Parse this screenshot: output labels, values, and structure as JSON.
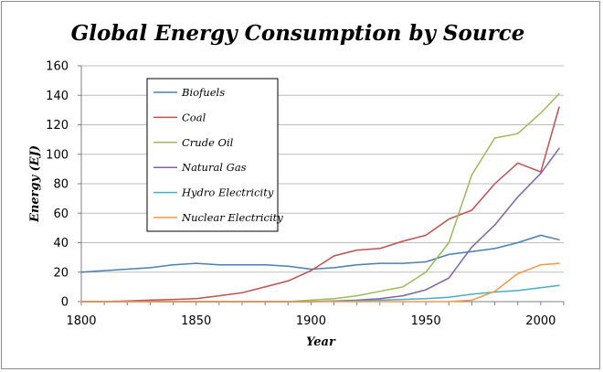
{
  "chart_data": {
    "type": "line",
    "title": "Global Energy Consumption by Source",
    "xlabel": "Year",
    "ylabel": "Energy (EJ)",
    "xlim": [
      1800,
      2010
    ],
    "ylim": [
      0,
      160
    ],
    "x_ticks": [
      1800,
      1850,
      1900,
      1950,
      2000
    ],
    "y_ticks": [
      0,
      20,
      40,
      60,
      80,
      100,
      120,
      140,
      160
    ],
    "grid": true,
    "legend_position": "top-left",
    "series": [
      {
        "name": "Biofuels",
        "color": "#4a7fb5",
        "x": [
          1800,
          1810,
          1820,
          1830,
          1840,
          1850,
          1860,
          1870,
          1880,
          1890,
          1900,
          1910,
          1920,
          1930,
          1940,
          1950,
          1960,
          1970,
          1980,
          1990,
          2000,
          2008
        ],
        "y": [
          20,
          21,
          22,
          23,
          25,
          26,
          25,
          25,
          25,
          24,
          22,
          23,
          25,
          26,
          26,
          27,
          32,
          34,
          36,
          40,
          45,
          42
        ]
      },
      {
        "name": "Coal",
        "color": "#c0504d",
        "x": [
          1800,
          1810,
          1820,
          1830,
          1840,
          1850,
          1860,
          1870,
          1880,
          1890,
          1900,
          1910,
          1920,
          1930,
          1940,
          1950,
          1960,
          1970,
          1980,
          1990,
          2000,
          2008
        ],
        "y": [
          0,
          0,
          0.5,
          1,
          1.5,
          2,
          4,
          6,
          10,
          14,
          21,
          31,
          35,
          36,
          41,
          45,
          56,
          62,
          80,
          94,
          88,
          132
        ]
      },
      {
        "name": "Crude Oil",
        "color": "#9bbb59",
        "x": [
          1800,
          1850,
          1890,
          1900,
          1910,
          1920,
          1930,
          1940,
          1950,
          1960,
          1970,
          1980,
          1990,
          2000,
          2008
        ],
        "y": [
          0,
          0,
          0,
          1,
          2,
          4,
          7,
          10,
          20,
          40,
          86,
          111,
          114,
          128,
          141
        ]
      },
      {
        "name": "Natural Gas",
        "color": "#8064a2",
        "x": [
          1800,
          1900,
          1910,
          1920,
          1930,
          1940,
          1950,
          1960,
          1970,
          1980,
          1990,
          2000,
          2008
        ],
        "y": [
          0,
          0,
          0.5,
          1,
          2,
          4,
          8,
          16,
          37,
          52,
          71,
          87,
          104
        ]
      },
      {
        "name": "Hydro Electricity",
        "color": "#4bacc6",
        "x": [
          1800,
          1900,
          1910,
          1920,
          1930,
          1940,
          1950,
          1960,
          1970,
          1980,
          1990,
          2000,
          2008
        ],
        "y": [
          0,
          0,
          0.3,
          0.6,
          1,
          1.5,
          2,
          3,
          5,
          6.5,
          7.5,
          9.5,
          11
        ]
      },
      {
        "name": "Nuclear Electricity",
        "color": "#f79646",
        "x": [
          1800,
          1960,
          1970,
          1980,
          1990,
          2000,
          2008
        ],
        "y": [
          0,
          0,
          1,
          7,
          19,
          25,
          26
        ]
      }
    ]
  }
}
